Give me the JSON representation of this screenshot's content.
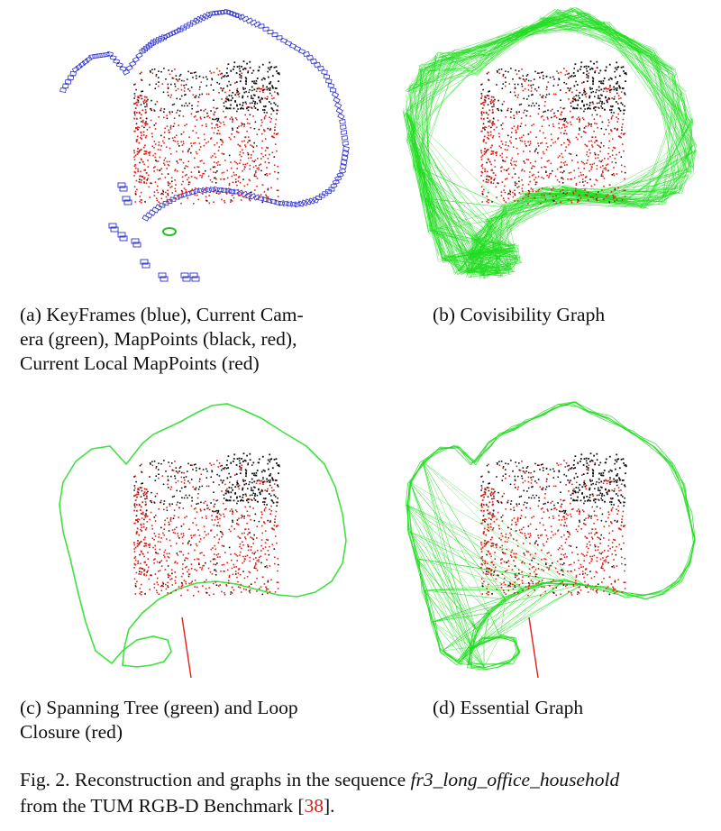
{
  "panels": [
    {
      "id": "a",
      "caption_lines": [
        "(a) KeyFrames (blue), Current Cam-",
        "era (green), MapPoints (black, red),",
        "Current Local MapPoints (red)"
      ],
      "colors": {
        "keyframes": "#2b2fd0",
        "current_camera": "#21c021",
        "points_black": "#111111",
        "points_red": "#e0201a"
      }
    },
    {
      "id": "b",
      "caption_lines": [
        "(b) Covisibility Graph"
      ],
      "colors": {
        "graph": "#1fdc1f",
        "points_black": "#111111",
        "points_red": "#e0201a"
      }
    },
    {
      "id": "c",
      "caption_lines": [
        "(c) Spanning Tree (green) and Loop",
        "Closure (red)"
      ],
      "colors": {
        "tree": "#3fe03f",
        "loop": "#e0201a",
        "points_black": "#111111",
        "points_red": "#e0201a"
      }
    },
    {
      "id": "d",
      "caption_lines": [
        "(d) Essential Graph"
      ],
      "colors": {
        "graph": "#1fdc1f",
        "loop": "#e0201a",
        "points_black": "#111111",
        "points_red": "#e0201a"
      }
    }
  ],
  "figure_caption": {
    "prefix": "Fig. 2.  Reconstruction and graphs in the sequence ",
    "sequence": "fr3_long_office_household",
    "line2_text": "from the TUM RGB-D Benchmark [",
    "ref": "38",
    "line2_end": "]."
  }
}
